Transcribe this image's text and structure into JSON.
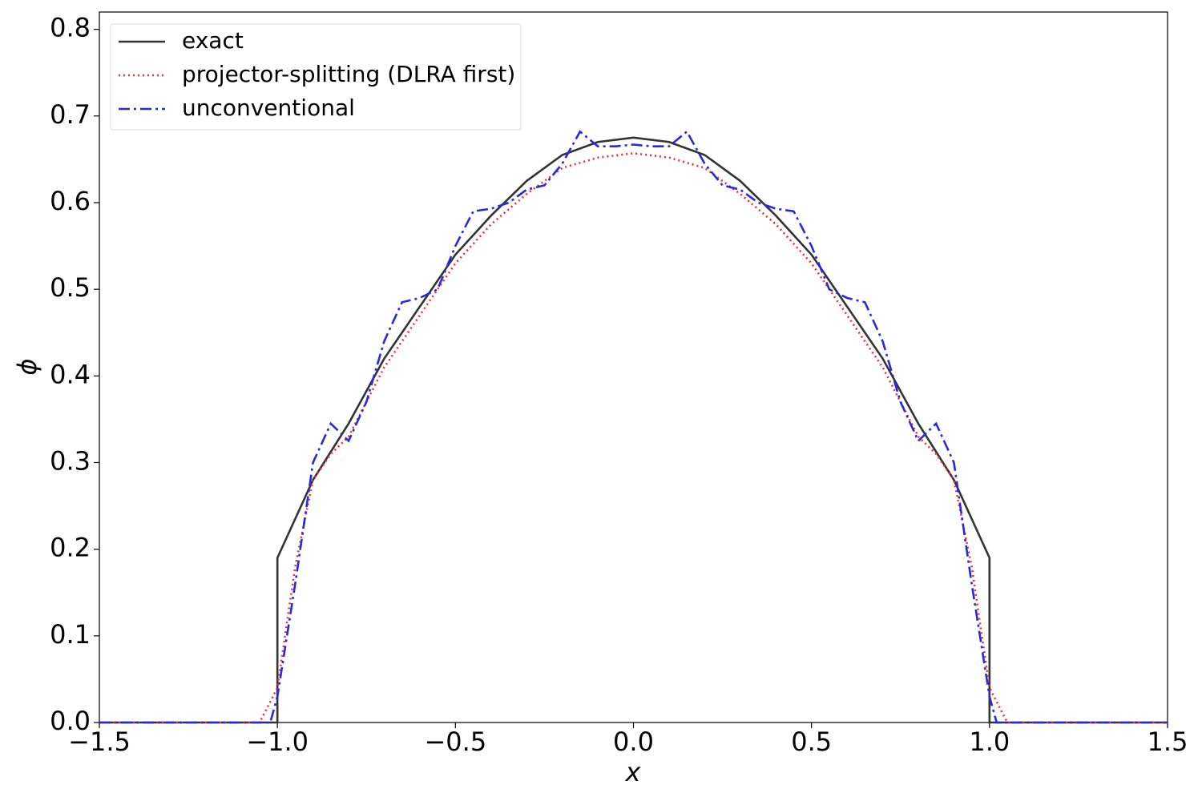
{
  "chart_data": {
    "type": "line",
    "xlabel": "x",
    "ylabel": "ϕ",
    "xlim": [
      -1.5,
      1.5
    ],
    "ylim": [
      0,
      0.82
    ],
    "xticks": [
      {
        "value": -1.5,
        "label": "−1.5"
      },
      {
        "value": -1.0,
        "label": "−1.0"
      },
      {
        "value": -0.5,
        "label": "−0.5"
      },
      {
        "value": 0,
        "label": "0.0"
      },
      0.5,
      {
        "value": 1.0,
        "label": "1.0"
      },
      1.5
    ],
    "yticks": [
      {
        "value": 0,
        "label": "0.0"
      },
      0.1,
      0.2,
      0.3,
      0.4,
      0.5,
      0.6,
      0.7,
      0.8
    ],
    "legend": "upper left",
    "series": [
      {
        "name": "exact",
        "color": "#333333",
        "linestyle": "solid",
        "x": [
          -1.5,
          -1.0,
          -1.0,
          -0.9,
          -0.8,
          -0.7,
          -0.6,
          -0.5,
          -0.4,
          -0.3,
          -0.2,
          -0.1,
          0,
          0.1,
          0.2,
          0.3,
          0.4,
          0.5,
          0.6,
          0.7,
          0.8,
          0.9,
          1.0,
          1.0,
          1.5
        ],
        "values": [
          0,
          0,
          0.19,
          0.28,
          0.345,
          0.42,
          0.48,
          0.54,
          0.585,
          0.625,
          0.655,
          0.67,
          0.675,
          0.67,
          0.655,
          0.625,
          0.585,
          0.54,
          0.48,
          0.42,
          0.345,
          0.28,
          0.19,
          0,
          0
        ]
      },
      {
        "name": "projector-splitting (DLRA first)",
        "color": "#e8303a",
        "linestyle": "dotted",
        "x": [
          -1.5,
          -1.05,
          -1.0,
          -0.95,
          -0.9,
          -0.85,
          -0.8,
          -0.7,
          -0.6,
          -0.5,
          -0.4,
          -0.3,
          -0.2,
          -0.1,
          0,
          0.1,
          0.2,
          0.3,
          0.4,
          0.5,
          0.6,
          0.7,
          0.8,
          0.85,
          0.9,
          0.95,
          1.0,
          1.05,
          1.5
        ],
        "values": [
          0,
          0,
          0.04,
          0.18,
          0.28,
          0.31,
          0.33,
          0.41,
          0.47,
          0.53,
          0.575,
          0.61,
          0.64,
          0.652,
          0.657,
          0.652,
          0.64,
          0.61,
          0.575,
          0.53,
          0.47,
          0.41,
          0.33,
          0.31,
          0.28,
          0.18,
          0.04,
          0,
          0
        ]
      },
      {
        "name": "unconventional",
        "color": "#2828e0",
        "linestyle": "dashdot",
        "x": [
          -1.5,
          -1.02,
          -1.0,
          -0.95,
          -0.9,
          -0.85,
          -0.8,
          -0.75,
          -0.7,
          -0.65,
          -0.6,
          -0.55,
          -0.5,
          -0.45,
          -0.4,
          -0.35,
          -0.3,
          -0.25,
          -0.2,
          -0.15,
          -0.1,
          -0.05,
          0,
          0.05,
          0.1,
          0.15,
          0.2,
          0.25,
          0.3,
          0.35,
          0.4,
          0.45,
          0.5,
          0.55,
          0.6,
          0.65,
          0.7,
          0.75,
          0.8,
          0.85,
          0.9,
          0.95,
          1.0,
          1.02,
          1.5
        ],
        "values": [
          0,
          0,
          0.03,
          0.16,
          0.3,
          0.345,
          0.325,
          0.37,
          0.44,
          0.485,
          0.49,
          0.5,
          0.55,
          0.59,
          0.593,
          0.6,
          0.615,
          0.62,
          0.645,
          0.682,
          0.665,
          0.665,
          0.667,
          0.665,
          0.665,
          0.682,
          0.645,
          0.62,
          0.615,
          0.6,
          0.593,
          0.59,
          0.55,
          0.5,
          0.49,
          0.485,
          0.44,
          0.37,
          0.325,
          0.345,
          0.3,
          0.16,
          0.03,
          0,
          0
        ]
      }
    ]
  }
}
